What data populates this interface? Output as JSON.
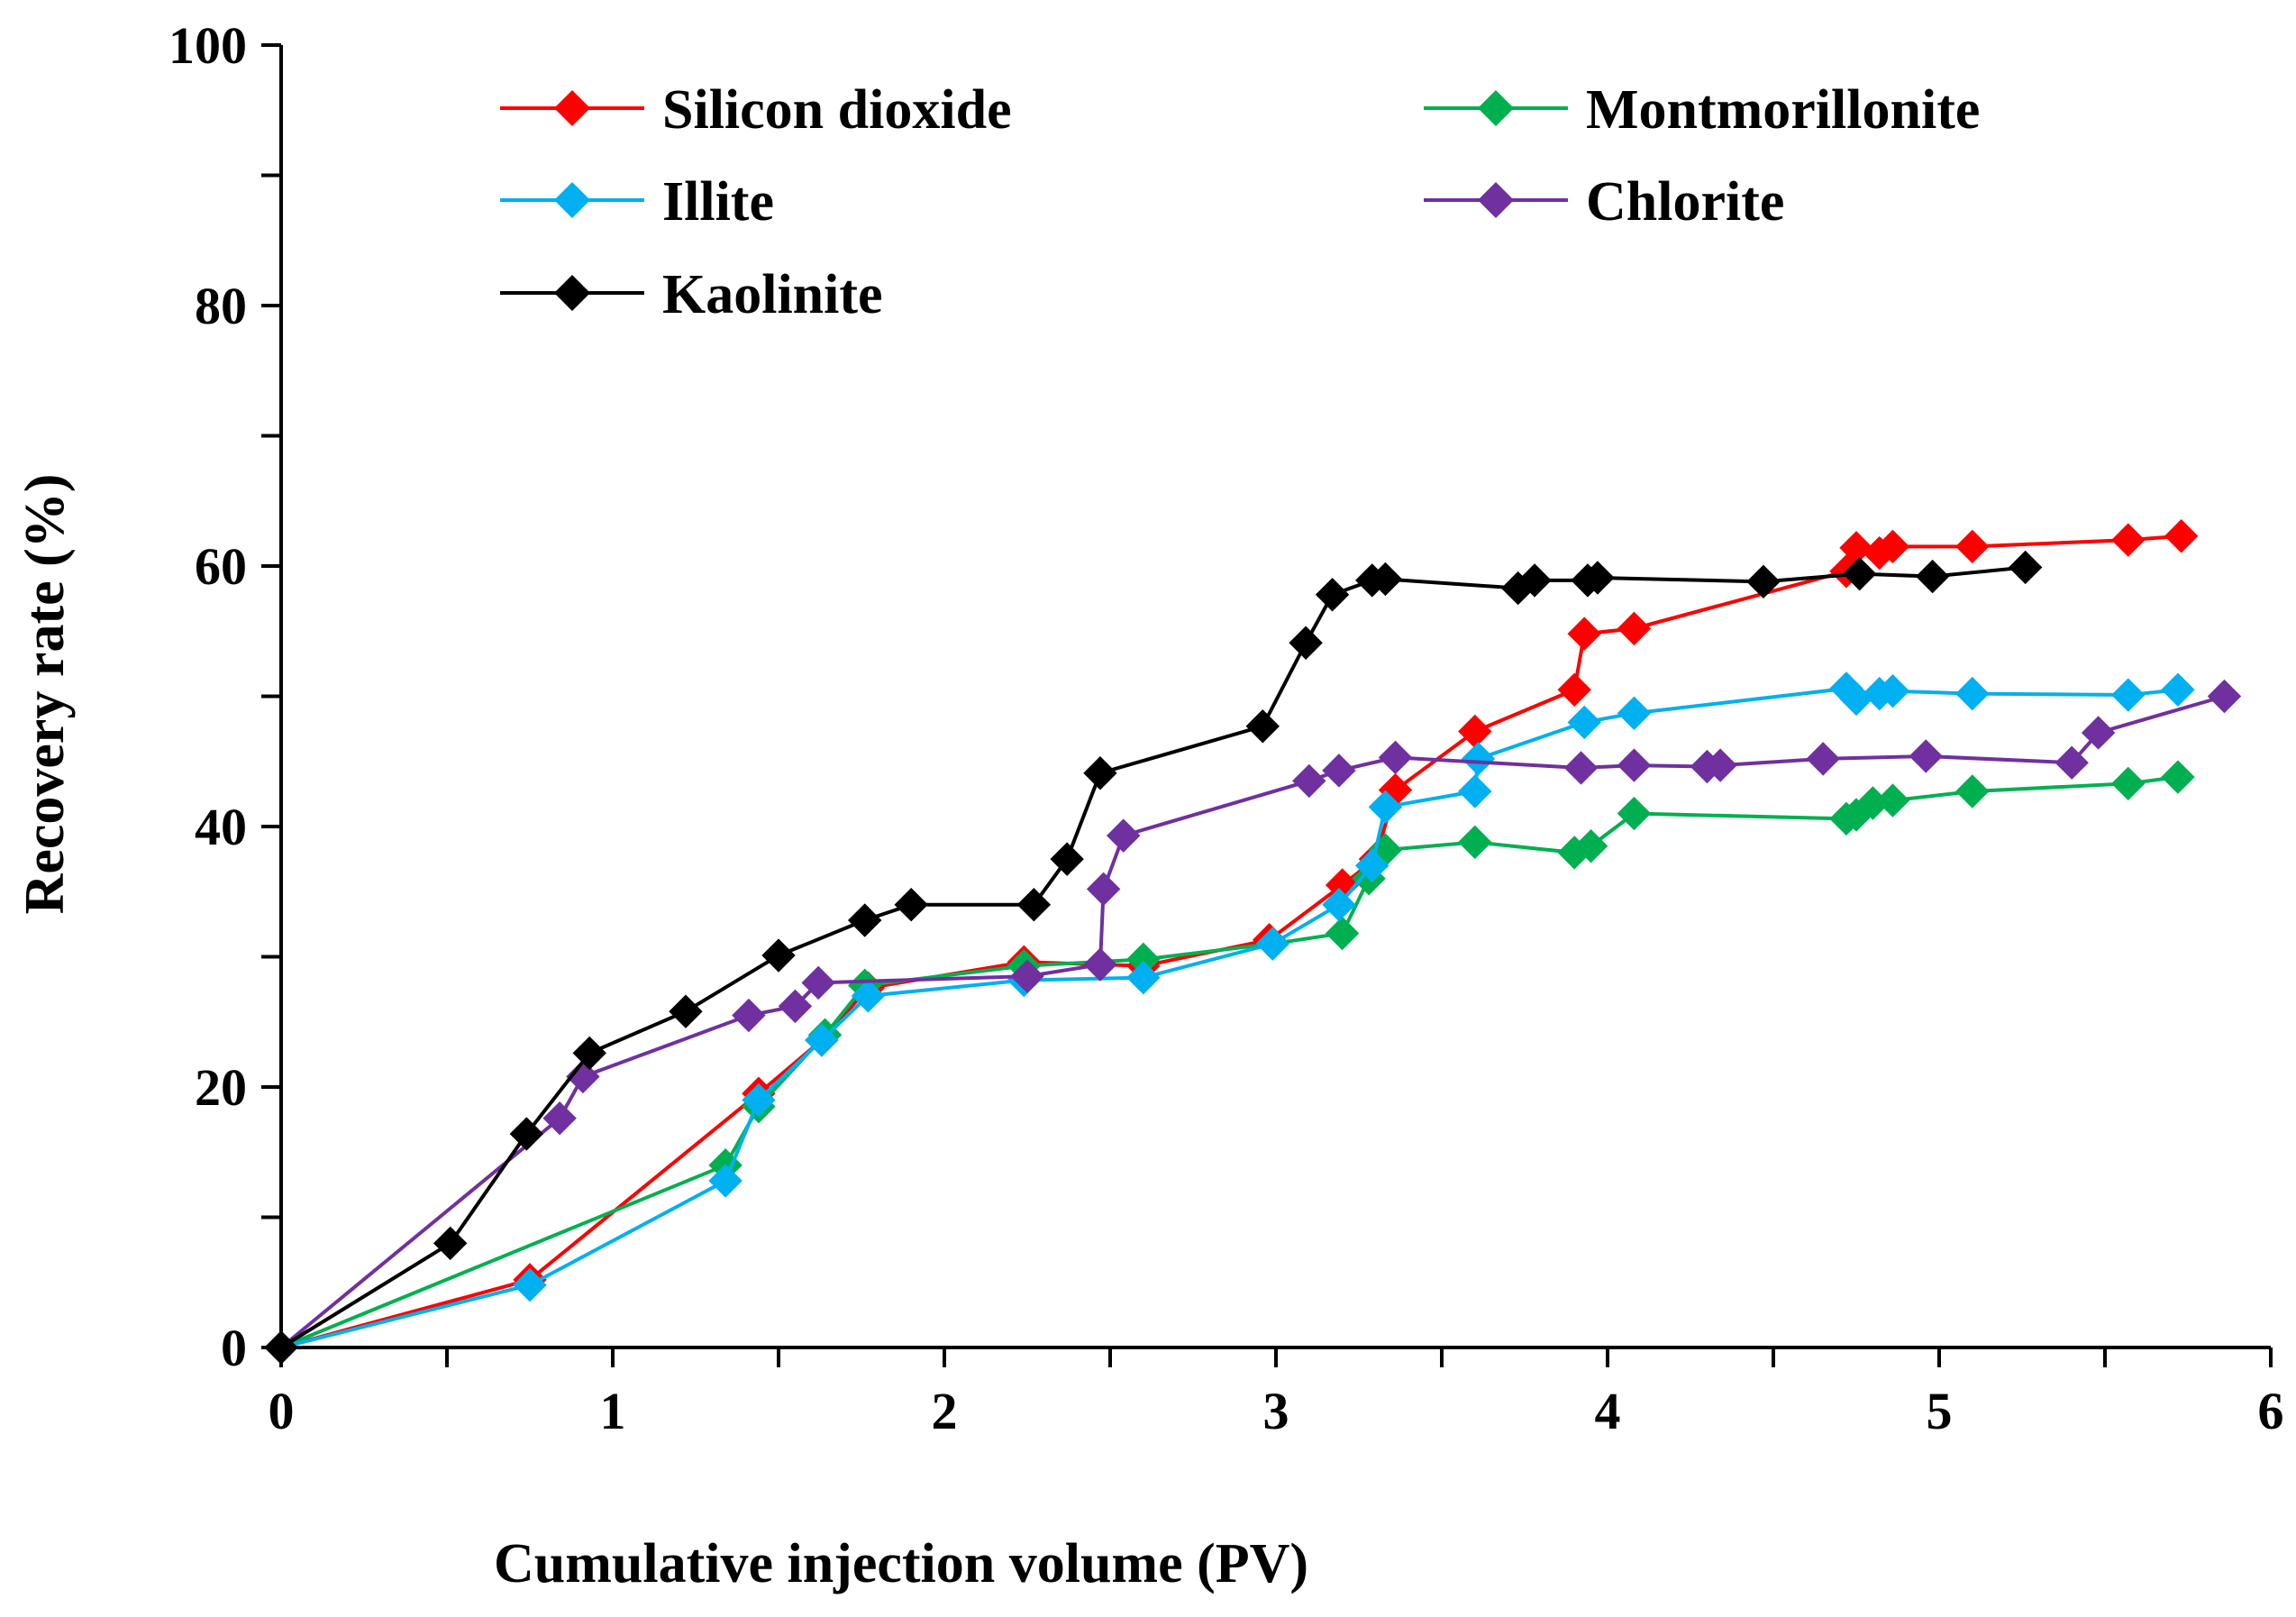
{
  "chart_data": {
    "type": "line",
    "title": "",
    "xlabel": "Cumulative injection volume (PV)",
    "ylabel": "Recovery rate (%)",
    "xlim": [
      0,
      6
    ],
    "ylim": [
      0,
      100
    ],
    "xticks": [
      "0",
      "1",
      "2",
      "3",
      "4",
      "5",
      "6"
    ],
    "yticks": [
      "0",
      "20",
      "40",
      "60",
      "80",
      "100"
    ],
    "grid": false,
    "legend_position": "top-left",
    "series": [
      {
        "name": "Silicon dioxide",
        "color": "#ff0000",
        "x": [
          0,
          0.75,
          1.44,
          1.63,
          1.77,
          2.24,
          2.6,
          2.98,
          3.2,
          3.3,
          3.36,
          3.6,
          3.9,
          3.93,
          4.08,
          4.72,
          4.75,
          4.82,
          4.86,
          5.1,
          5.57,
          5.73
        ],
        "y": [
          0,
          5.2,
          19.5,
          23.6,
          27.6,
          29.6,
          29.3,
          31.3,
          35.5,
          37.5,
          42.8,
          47.3,
          50.5,
          54.8,
          55.2,
          59.6,
          61.4,
          61.0,
          61.5,
          61.5,
          62.0,
          62.3
        ]
      },
      {
        "name": "Montmorillonite",
        "color": "#00b050",
        "x": [
          0,
          1.34,
          1.44,
          1.64,
          1.76,
          2.24,
          2.6,
          2.99,
          3.2,
          3.28,
          3.33,
          3.6,
          3.9,
          3.95,
          4.08,
          4.72,
          4.75,
          4.8,
          4.86,
          5.1,
          5.57,
          5.72
        ],
        "y": [
          0,
          14.0,
          18.5,
          24.0,
          27.8,
          29.3,
          29.8,
          31.0,
          31.8,
          36.0,
          38.2,
          38.8,
          38.0,
          38.5,
          41.0,
          40.6,
          40.9,
          41.8,
          42.0,
          42.7,
          43.3,
          43.8
        ]
      },
      {
        "name": "Illite",
        "color": "#00b0f0",
        "x": [
          0,
          0.75,
          1.34,
          1.44,
          1.63,
          1.77,
          2.24,
          2.6,
          2.99,
          3.19,
          3.29,
          3.33,
          3.6,
          3.61,
          3.93,
          4.08,
          4.72,
          4.75,
          4.82,
          4.86,
          5.1,
          5.57,
          5.72
        ],
        "y": [
          0,
          4.8,
          12.8,
          19.0,
          23.6,
          27.0,
          28.2,
          28.4,
          31.0,
          34.0,
          37.0,
          41.5,
          42.7,
          45.2,
          48.0,
          48.7,
          50.6,
          49.8,
          50.2,
          50.4,
          50.2,
          50.1,
          50.5
        ]
      },
      {
        "name": "Chlorite",
        "color": "#7030a0",
        "x": [
          0,
          0.84,
          0.91,
          1.41,
          1.55,
          1.62,
          2.25,
          2.47,
          2.48,
          2.54,
          3.1,
          3.19,
          3.36,
          3.92,
          4.08,
          4.3,
          4.34,
          4.65,
          4.96,
          5.4,
          5.48,
          5.86
        ],
        "y": [
          0,
          17.6,
          20.8,
          25.5,
          26.2,
          28.0,
          28.5,
          29.4,
          35.2,
          39.3,
          43.5,
          44.3,
          45.3,
          44.5,
          44.7,
          44.6,
          44.7,
          45.2,
          45.4,
          44.9,
          47.2,
          50.0
        ]
      },
      {
        "name": "Kaolinite",
        "color": "#000000",
        "x": [
          0,
          0.51,
          0.74,
          0.93,
          1.22,
          1.5,
          1.76,
          1.9,
          2.27,
          2.37,
          2.47,
          2.96,
          3.09,
          3.17,
          3.29,
          3.33,
          3.73,
          3.78,
          3.94,
          3.97,
          4.47,
          4.76,
          4.98,
          5.26
        ],
        "y": [
          0,
          8.0,
          16.4,
          22.6,
          25.8,
          30.1,
          32.8,
          34.0,
          34.0,
          37.5,
          44.1,
          47.7,
          54.1,
          57.8,
          58.9,
          59.0,
          58.3,
          58.9,
          58.9,
          59.1,
          58.8,
          59.4,
          59.2,
          59.9
        ]
      }
    ]
  }
}
